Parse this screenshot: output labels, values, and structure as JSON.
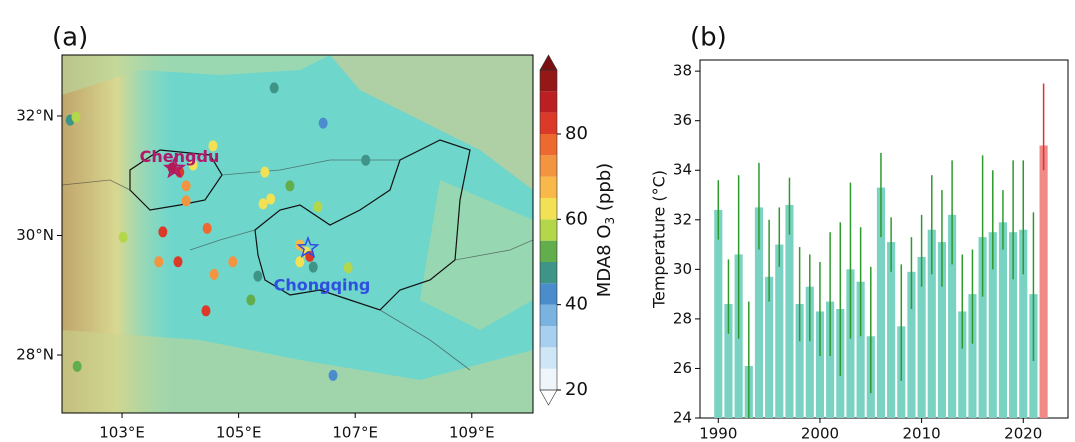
{
  "chart_data": [
    {
      "type": "map",
      "panel_label": "(a)",
      "xlim": [
        101.97,
        110.05
      ],
      "ylim": [
        27.03,
        33.02
      ],
      "xticks": [
        {
          "value": 103,
          "label": "103°E"
        },
        {
          "value": 105,
          "label": "105°E"
        },
        {
          "value": 107,
          "label": "107°E"
        },
        {
          "value": 109,
          "label": "109°E"
        }
      ],
      "yticks": [
        {
          "value": 28,
          "label": "28°N"
        },
        {
          "value": 30,
          "label": "30°N"
        },
        {
          "value": 32,
          "label": "32°N"
        }
      ],
      "cities": [
        {
          "name": "Chengdu",
          "lon": 103.9,
          "lat": 31.12,
          "color": "#b0186a"
        },
        {
          "name": "Chongqing",
          "lon": 106.19,
          "lat": 29.79,
          "color": "#2f4fe0"
        }
      ],
      "points": {
        "lon": [
          103.86,
          103.99,
          102.11,
          102.21,
          104.1,
          104.1,
          104.56,
          104.22,
          103.7,
          103.63,
          103.96,
          104.46,
          104.58,
          104.9,
          104.44,
          105.45,
          105.42,
          105.55,
          105.88,
          106.36,
          105.21,
          105.61,
          106.45,
          107.18,
          106.16,
          106.05,
          106.28,
          106.05,
          105.33,
          106.88,
          106.62,
          102.23,
          103.02,
          106.22
        ],
        "lat": [
          31.13,
          31.06,
          31.93,
          31.98,
          30.83,
          30.58,
          31.5,
          31.18,
          30.06,
          29.56,
          29.56,
          30.12,
          29.35,
          29.56,
          28.74,
          31.06,
          30.53,
          30.61,
          30.83,
          30.48,
          28.92,
          32.47,
          31.88,
          31.26,
          29.72,
          29.56,
          29.47,
          29.84,
          29.32,
          29.46,
          27.66,
          27.81,
          29.97,
          29.65
        ],
        "values": [
          88,
          84,
          45,
          55,
          74,
          70,
          62,
          62,
          82,
          74,
          82,
          76,
          74,
          72,
          80,
          62,
          62,
          60,
          52,
          58,
          54,
          48,
          40,
          45,
          62,
          60,
          48,
          66,
          46,
          55,
          42,
          50,
          58,
          80
        ]
      },
      "colorbar": {
        "levels": [
          20,
          25,
          30,
          35,
          40,
          45,
          50,
          55,
          60,
          65,
          70,
          75,
          80,
          85,
          90,
          95
        ],
        "colors": [
          "#eef6fc",
          "#cfe6f6",
          "#a8cfee",
          "#7ab2e0",
          "#4a8ccc",
          "#3f9488",
          "#62ad4c",
          "#b4d64a",
          "#f2e055",
          "#f8b84a",
          "#f29440",
          "#ec6a30",
          "#dc3a28",
          "#bc1f22",
          "#941818"
        ],
        "over_color": "#7a0f12",
        "under_color": "#ffffff",
        "ticks": [
          20,
          40,
          60,
          80
        ],
        "label": [
          "MDA8 O",
          "3",
          " (ppb)"
        ]
      }
    },
    {
      "type": "bar",
      "panel_label": "(b)",
      "ylabel": "Temperature (°C)",
      "x": [
        1990,
        1991,
        1992,
        1993,
        1994,
        1995,
        1996,
        1997,
        1998,
        1999,
        2000,
        2001,
        2002,
        2003,
        2004,
        2005,
        2006,
        2007,
        2008,
        2009,
        2010,
        2011,
        2012,
        2013,
        2014,
        2015,
        2016,
        2017,
        2018,
        2019,
        2020,
        2021,
        2022
      ],
      "values": [
        32.4,
        28.6,
        30.6,
        26.1,
        32.5,
        29.7,
        31.0,
        32.6,
        28.6,
        29.3,
        28.3,
        28.7,
        28.4,
        30.0,
        29.5,
        27.3,
        33.3,
        31.1,
        27.7,
        29.9,
        30.5,
        31.6,
        31.1,
        32.2,
        28.3,
        29.0,
        31.3,
        31.5,
        31.9,
        31.5,
        31.6,
        29.0,
        35.0
      ],
      "lower": [
        31.2,
        27.4,
        27.2,
        24.0,
        30.8,
        28.7,
        30.1,
        31.4,
        27.1,
        27.1,
        26.5,
        26.5,
        25.7,
        27.2,
        27.3,
        25.0,
        31.3,
        29.9,
        25.5,
        28.4,
        29.3,
        29.8,
        29.3,
        30.2,
        26.8,
        27.0,
        28.9,
        30.0,
        30.8,
        29.6,
        29.8,
        26.3,
        34.0
      ],
      "upper": [
        33.6,
        30.4,
        33.8,
        28.7,
        34.3,
        32.0,
        32.5,
        33.7,
        30.9,
        30.6,
        30.3,
        31.5,
        31.9,
        33.5,
        31.7,
        30.1,
        34.7,
        32.1,
        30.2,
        31.3,
        32.2,
        33.8,
        33.2,
        34.4,
        30.6,
        30.8,
        34.6,
        34.0,
        33.2,
        34.4,
        34.4,
        32.3,
        37.5
      ],
      "colors": [
        "#79d2c2",
        "#79d2c2",
        "#79d2c2",
        "#79d2c2",
        "#79d2c2",
        "#79d2c2",
        "#79d2c2",
        "#79d2c2",
        "#79d2c2",
        "#79d2c2",
        "#79d2c2",
        "#79d2c2",
        "#79d2c2",
        "#79d2c2",
        "#79d2c2",
        "#79d2c2",
        "#79d2c2",
        "#79d2c2",
        "#79d2c2",
        "#79d2c2",
        "#79d2c2",
        "#79d2c2",
        "#79d2c2",
        "#79d2c2",
        "#79d2c2",
        "#79d2c2",
        "#79d2c2",
        "#79d2c2",
        "#79d2c2",
        "#79d2c2",
        "#79d2c2",
        "#79d2c2",
        "#f08a86"
      ],
      "error_colors": [
        "#2e9a2e",
        "#2e9a2e",
        "#2e9a2e",
        "#2e9a2e",
        "#2e9a2e",
        "#2e9a2e",
        "#2e9a2e",
        "#2e9a2e",
        "#2e9a2e",
        "#2e9a2e",
        "#2e9a2e",
        "#2e9a2e",
        "#2e9a2e",
        "#2e9a2e",
        "#2e9a2e",
        "#2e9a2e",
        "#2e9a2e",
        "#2e9a2e",
        "#2e9a2e",
        "#2e9a2e",
        "#2e9a2e",
        "#2e9a2e",
        "#2e9a2e",
        "#2e9a2e",
        "#2e9a2e",
        "#2e9a2e",
        "#2e9a2e",
        "#2e9a2e",
        "#2e9a2e",
        "#2e9a2e",
        "#2e9a2e",
        "#2e9a2e",
        "#e0302c"
      ],
      "xlim": [
        1988.2,
        2024.4
      ],
      "ylim": [
        24,
        38.45
      ],
      "xticks": [
        1990,
        2000,
        2010,
        2020
      ],
      "yticks": [
        24,
        26,
        28,
        30,
        32,
        34,
        36,
        38
      ]
    }
  ]
}
